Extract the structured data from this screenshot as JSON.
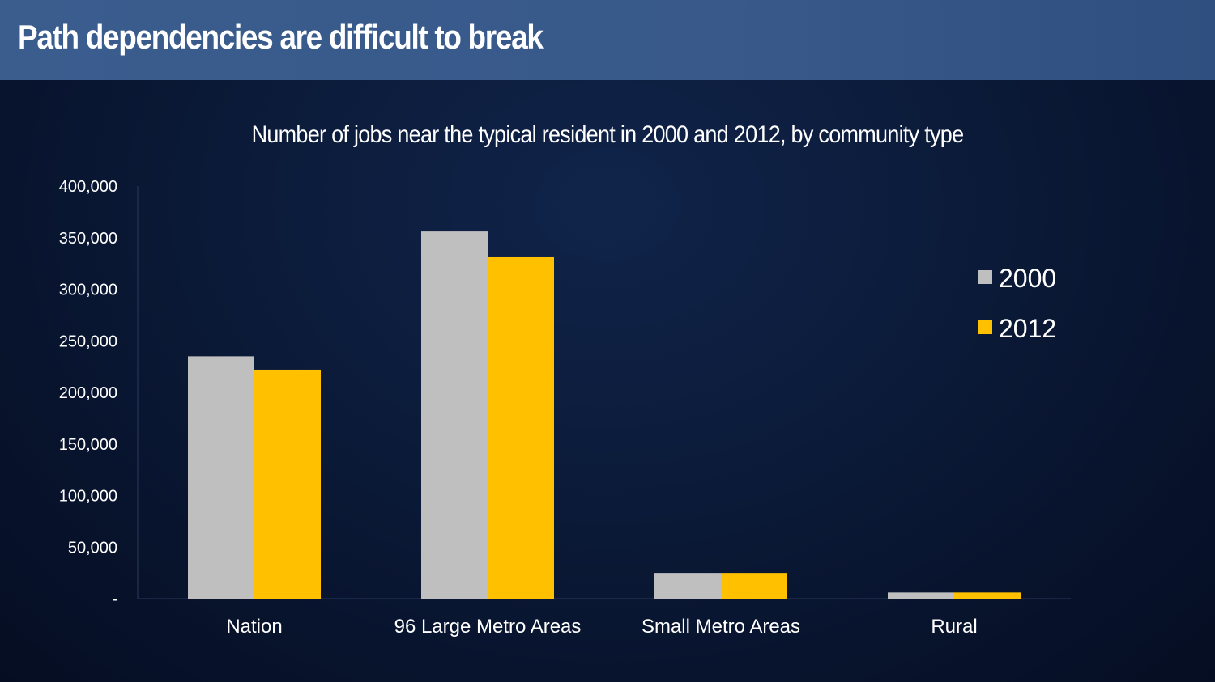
{
  "slide": {
    "title": "Path dependencies are difficult to break"
  },
  "chart_data": {
    "type": "bar",
    "title": "Number of jobs near the typical resident in 2000 and 2012, by community type",
    "categories": [
      "Nation",
      "96 Large Metro Areas",
      "Small Metro Areas",
      "Rural"
    ],
    "series": [
      {
        "name": "2000",
        "color": "#bfbfbf",
        "values": [
          235000,
          356000,
          25000,
          6000
        ]
      },
      {
        "name": "2012",
        "color": "#ffc000",
        "values": [
          222000,
          331000,
          25000,
          6000
        ]
      }
    ],
    "ylim": [
      0,
      400000
    ],
    "yticks": [
      {
        "value": 0,
        "label": "-"
      },
      {
        "value": 50000,
        "label": "50,000"
      },
      {
        "value": 100000,
        "label": "100,000"
      },
      {
        "value": 150000,
        "label": "150,000"
      },
      {
        "value": 200000,
        "label": "200,000"
      },
      {
        "value": 250000,
        "label": "250,000"
      },
      {
        "value": 300000,
        "label": "300,000"
      },
      {
        "value": 350000,
        "label": "350,000"
      },
      {
        "value": 400000,
        "label": "400,000"
      }
    ],
    "grid": false,
    "legend": "right"
  }
}
